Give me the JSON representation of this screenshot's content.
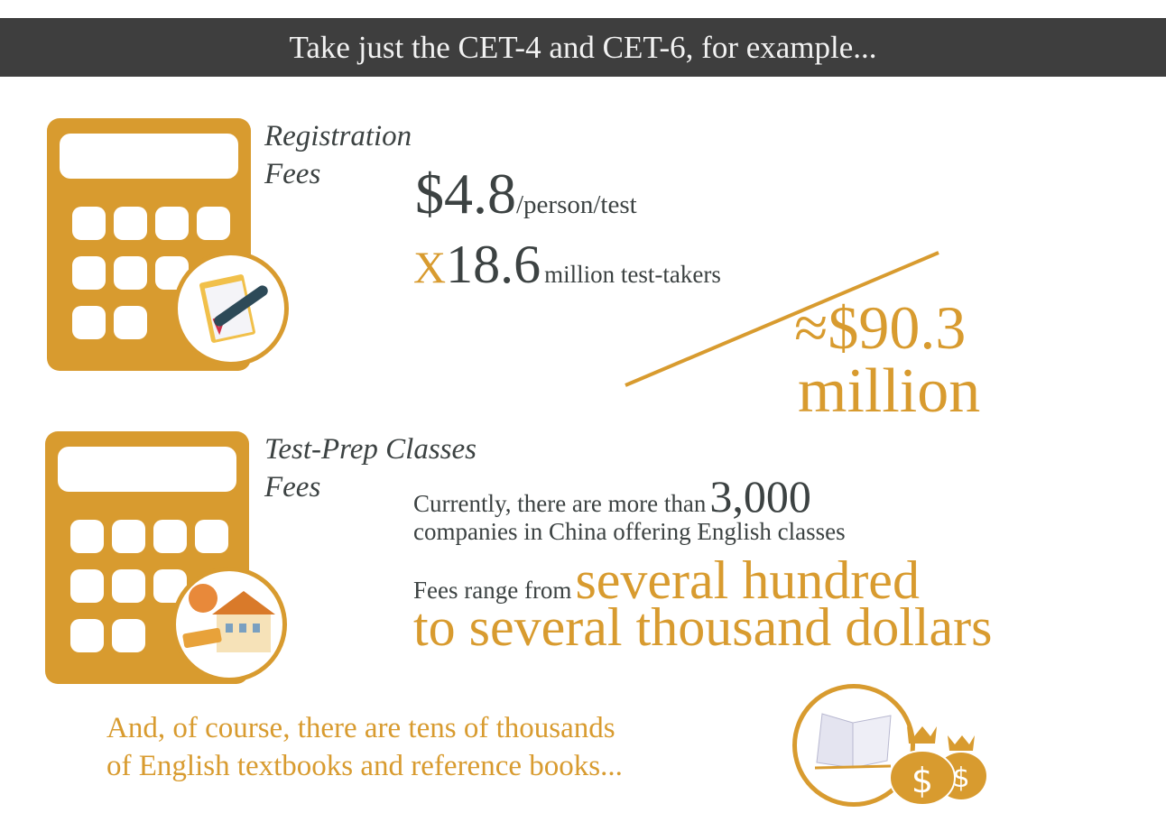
{
  "header": {
    "title": "Take just the CET-4 and CET-6, for example..."
  },
  "colors": {
    "accent": "#d89b2f",
    "text": "#3c4242",
    "header_bg": "#3e3e3e"
  },
  "registration": {
    "label_line1": "Registration",
    "label_line2": "Fees",
    "icon": "calculator-clipboard-pen-icon",
    "price": "$4.8",
    "price_unit": "/person/test",
    "times": "X",
    "takers": "18.6",
    "takers_unit": "million test-takers",
    "total": "≈$90.3",
    "total_unit": "million"
  },
  "classes": {
    "label_line1": "Test-Prep Classes",
    "label_line2": "Fees",
    "icon": "calculator-school-icon",
    "line1": "Currently, there are more than",
    "count": "3,000",
    "line2": "companies in China offering English classes",
    "fees_prefix": "Fees range from",
    "fees_range1": "several hundred",
    "fees_range2": "to several thousand dollars"
  },
  "books": {
    "line1": "And, of course, there are tens of thousands",
    "line2": "of English textbooks and reference books...",
    "icon": "book-money-bags-icon"
  }
}
